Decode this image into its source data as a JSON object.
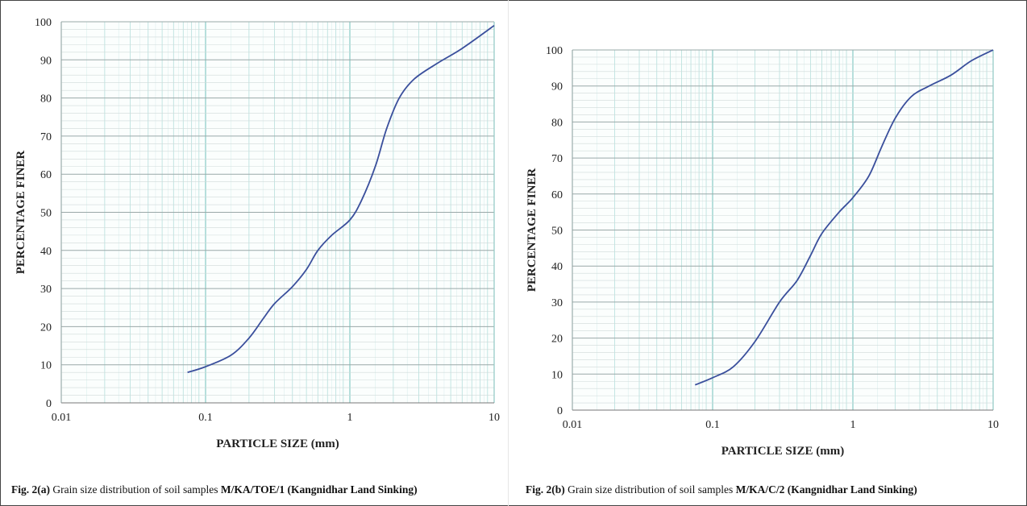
{
  "chart_data": [
    {
      "type": "line",
      "x_scale": "log",
      "xlabel": "PARTICLE SIZE (mm)",
      "ylabel": "PERCENTAGE  FINER",
      "xlim": [
        0.01,
        10
      ],
      "ylim": [
        0,
        100
      ],
      "x_ticks": [
        "0.01",
        "0.1",
        "1",
        "10"
      ],
      "y_ticks": [
        "0",
        "10",
        "20",
        "30",
        "40",
        "50",
        "60",
        "70",
        "80",
        "90",
        "100"
      ],
      "grid": true,
      "series": [
        {
          "color": "#3a4f9c",
          "points": [
            [
              0.075,
              8
            ],
            [
              0.1,
              9.5
            ],
            [
              0.15,
              12.5
            ],
            [
              0.2,
              17
            ],
            [
              0.25,
              22
            ],
            [
              0.3,
              26
            ],
            [
              0.4,
              30.5
            ],
            [
              0.5,
              35
            ],
            [
              0.6,
              40
            ],
            [
              0.75,
              44
            ],
            [
              1.0,
              48
            ],
            [
              1.2,
              53
            ],
            [
              1.5,
              62
            ],
            [
              1.8,
              72
            ],
            [
              2.2,
              80
            ],
            [
              2.8,
              85
            ],
            [
              4.0,
              89
            ],
            [
              6.0,
              93
            ],
            [
              10.0,
              99
            ]
          ]
        }
      ],
      "caption": {
        "label": "Fig. 2(a)",
        "text": "Grain size distribution of soil samples",
        "sample": "M/KA/TOE/1 (Kangnidhar  Land Sinking)"
      }
    },
    {
      "type": "line",
      "x_scale": "log",
      "xlabel": "PARTICLE SIZE (mm)",
      "ylabel": "PERCENTAGE  FINER",
      "xlim": [
        0.01,
        10
      ],
      "ylim": [
        0,
        100
      ],
      "x_ticks": [
        "0.01",
        "0.1",
        "1",
        "10"
      ],
      "y_ticks": [
        "0",
        "10",
        "20",
        "30",
        "40",
        "50",
        "60",
        "70",
        "80",
        "90",
        "100"
      ],
      "grid": true,
      "series": [
        {
          "color": "#3a4f9c",
          "points": [
            [
              0.075,
              7
            ],
            [
              0.1,
              9
            ],
            [
              0.14,
              12
            ],
            [
              0.2,
              19
            ],
            [
              0.3,
              30
            ],
            [
              0.4,
              36
            ],
            [
              0.5,
              43
            ],
            [
              0.6,
              49
            ],
            [
              0.8,
              55
            ],
            [
              1.0,
              59
            ],
            [
              1.3,
              65
            ],
            [
              1.6,
              73
            ],
            [
              2.0,
              81
            ],
            [
              2.6,
              87
            ],
            [
              3.5,
              90
            ],
            [
              5.0,
              93
            ],
            [
              7.0,
              97
            ],
            [
              10.0,
              100
            ]
          ]
        }
      ],
      "caption": {
        "label": "Fig. 2(b)",
        "text": "Grain size distribution of soil samples",
        "sample": "M/KA/C/2 (Kangnidhar  Land Sinking)"
      }
    }
  ]
}
